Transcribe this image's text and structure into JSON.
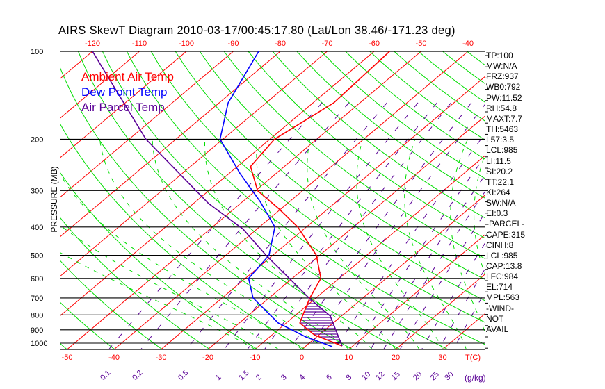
{
  "title": "AIRS SkewT Diagram 2010-03-17/00:45:17.80 (Lat/Lon 38.46/-171.23 deg)",
  "legend": [
    {
      "label": "Ambient Air Temp",
      "color": "#ff0000"
    },
    {
      "label": "Dew Point Temp",
      "color": "#0000ff"
    },
    {
      "label": "Air Parcel Temp",
      "color": "#5a0096"
    }
  ],
  "stats": [
    "TP:100",
    "MW:N/A",
    "FRZ:937",
    "WB0:792",
    "PW:11.52",
    "RH:54.8",
    "MAXT:7.7",
    "TH:5463",
    "L57:3.5",
    "LCL:985",
    "LI:11.5",
    "SI:20.2",
    "TT:22.1",
    "KI:264",
    "SW:N/A",
    "EI:0.3",
    "-PARCEL-",
    "CAPE:315",
    "CINH:8",
    "LCL:985",
    "CAP:13.8",
    "LFC:984",
    "EL:714",
    "MPL:563",
    "-WIND-",
    "NOT",
    "AVAIL"
  ],
  "chart_data": {
    "type": "line",
    "title": "AIRS SkewT Diagram 2010-03-17/00:45:17.80 (Lat/Lon 38.46/-171.23 deg)",
    "ylabel": "PRESSURE (MB)",
    "xlabel": "T(C)",
    "mixing_ratio_label": "g/kg",
    "ylim": [
      1050,
      100
    ],
    "y_scale": "log",
    "pressure_ticks": [
      100,
      200,
      300,
      400,
      500,
      600,
      700,
      800,
      900,
      1000
    ],
    "bottom_temp_ticks": [
      -50,
      -40,
      -30,
      -20,
      -10,
      0,
      10,
      20,
      30
    ],
    "top_temp_ticks": [
      -120,
      -110,
      -100,
      -90,
      -80,
      -70,
      -60,
      -50,
      -40
    ],
    "mixing_ratio_ticks": [
      "0.1",
      "0.2",
      "0.5",
      "1",
      "1.5",
      "2",
      "3",
      "4",
      "6",
      "8",
      "10",
      "12",
      "15",
      "20",
      "25",
      "30"
    ],
    "series": [
      {
        "name": "Ambient Air Temp",
        "color": "#ff0000",
        "p": [
          100,
          150,
          200,
          248,
          300,
          345,
          400,
          500,
          600,
          700,
          800,
          853,
          937,
          1022
        ],
        "t": [
          -56.7,
          -55.6,
          -59.0,
          -57.2,
          -49.6,
          -40.7,
          -31.8,
          -20.7,
          -13.9,
          -11.3,
          -8.5,
          -7.1,
          -1.0,
          7.7
        ]
      },
      {
        "name": "Dew Point Temp",
        "color": "#0000ff",
        "p": [
          100,
          150,
          200,
          262,
          327,
          400,
          500,
          600,
          700,
          853,
          952,
          1028
        ],
        "t": [
          -84.6,
          -78.1,
          -70.6,
          -57.7,
          -46.3,
          -36.7,
          -30.8,
          -29.3,
          -23.4,
          -11.7,
          -2.3,
          5.8
        ]
      },
      {
        "name": "Air Parcel Temp",
        "color": "#5a0096",
        "p": [
          100,
          200,
          332,
          407,
          500,
          700,
          807,
          1022
        ],
        "t": [
          -120,
          -86.4,
          -56.8,
          -42.9,
          -31.4,
          -11.5,
          -2.4,
          7.7
        ]
      }
    ],
    "cape_shading": {
      "from_p": 714,
      "to_p": 1022,
      "color": "#5a0096"
    },
    "grid": true
  }
}
